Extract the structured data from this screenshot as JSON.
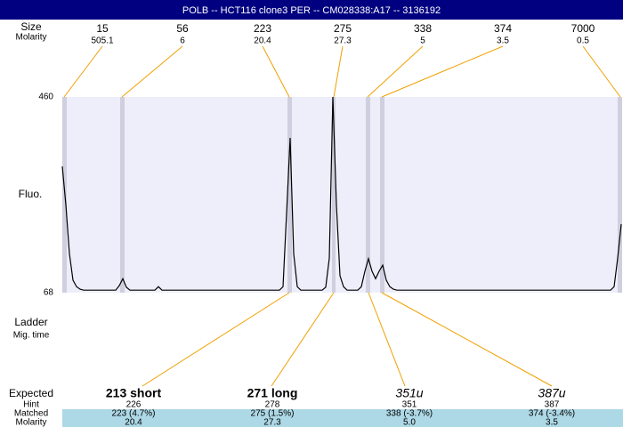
{
  "header": {
    "title": "POLB -- HCT116 clone3 PER -- CM028338:A17 -- 3136192"
  },
  "ladder": {
    "size_label": "Size",
    "molarity_label": "Molarity",
    "sizes": [
      15,
      56,
      223,
      275,
      338,
      374,
      7000
    ],
    "molarities": [
      505.1,
      6,
      20.4,
      27.3,
      5,
      3.5,
      0.5
    ]
  },
  "chart_data": {
    "type": "line",
    "ylabel": "Fluo.",
    "ylim": [
      68,
      460
    ],
    "yticks": [
      460,
      68
    ],
    "color": "#000000",
    "values": [
      321,
      244,
      146,
      93,
      80,
      75,
      73,
      73,
      73,
      73,
      73,
      73,
      73,
      73,
      73,
      73,
      82,
      96,
      79,
      73,
      73,
      73,
      73,
      73,
      73,
      73,
      73,
      80,
      73,
      73,
      73,
      73,
      73,
      73,
      73,
      73,
      73,
      73,
      73,
      73,
      73,
      73,
      73,
      73,
      73,
      73,
      73,
      73,
      73,
      73,
      73,
      73,
      73,
      73,
      73,
      73,
      73,
      73,
      73,
      73,
      73,
      73,
      80,
      227,
      378,
      146,
      80,
      73,
      73,
      73,
      73,
      73,
      73,
      73,
      79,
      137,
      460,
      244,
      102,
      80,
      73,
      73,
      73,
      73,
      80,
      111,
      136,
      111,
      96,
      111,
      123,
      93,
      80,
      75,
      73,
      73,
      73,
      73,
      73,
      73,
      73,
      73,
      73,
      73,
      73,
      73,
      73,
      73,
      73,
      73,
      73,
      73,
      73,
      73,
      73,
      73,
      73,
      73,
      73,
      73,
      73,
      73,
      73,
      73,
      73,
      73,
      73,
      73,
      73,
      73,
      73,
      73,
      73,
      73,
      73,
      73,
      73,
      73,
      73,
      73,
      73,
      73,
      73,
      73,
      73,
      73,
      73,
      73,
      73,
      73,
      73,
      73,
      73,
      73,
      73,
      80,
      137,
      205
    ]
  },
  "left_labels": {
    "ladder": "Ladder",
    "mig_time": "Mig. time"
  },
  "table": {
    "row_labels": [
      "Expected",
      "Hint",
      "Matched",
      "Molarity"
    ],
    "columns": [
      {
        "expected": "213 short",
        "hint": 226,
        "matched": "223 (4.7%)",
        "molarity": "20.4"
      },
      {
        "expected": "271 long",
        "hint": 278,
        "matched": "275 (1.5%)",
        "molarity": "27.3"
      },
      {
        "expected": "351u",
        "hint": 351,
        "matched": "338 (-3.7%)",
        "molarity": "5.0"
      },
      {
        "expected": "387u",
        "hint": 387,
        "matched": "374 (-3.4%)",
        "molarity": "3.5"
      }
    ]
  }
}
